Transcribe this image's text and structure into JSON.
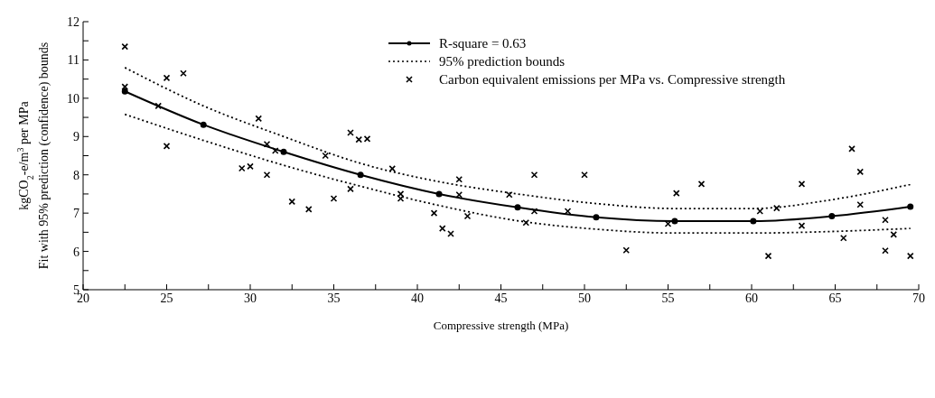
{
  "chart_data": {
    "type": "line",
    "xlabel": "Compressive strength (MPa)",
    "ylabel": "kgCO$_{2}$-e/m$^{3}$ per MPa\nFit with 95% prediction (confidence) bounds",
    "xlim": [
      20,
      70
    ],
    "ylim": [
      5,
      12
    ],
    "xticks": [
      20,
      {
        "value": 22.5,
        "label": null
      },
      25,
      {
        "value": 27.5,
        "label": null
      },
      30,
      {
        "value": 32.5,
        "label": null
      },
      35,
      {
        "value": 37.5,
        "label": null
      },
      40,
      {
        "value": 42.5,
        "label": null
      },
      45,
      {
        "value": 47.5,
        "label": null
      },
      50,
      {
        "value": 52.5,
        "label": null
      },
      55,
      {
        "value": 57.5,
        "label": null
      },
      60,
      {
        "value": 62.5,
        "label": null
      },
      65,
      {
        "value": 67.5,
        "label": null
      },
      70
    ],
    "yticks": [
      5,
      {
        "value": 5.5,
        "label": null
      },
      6,
      {
        "value": 6.5,
        "label": null
      },
      7,
      {
        "value": 7.5,
        "label": null
      },
      8,
      {
        "value": 8.5,
        "label": null
      },
      9,
      {
        "value": 9.5,
        "label": null
      },
      10,
      {
        "value": 10.5,
        "label": null
      },
      11,
      {
        "value": 11.5,
        "label": null
      },
      12
    ],
    "grid": false,
    "legend": "top",
    "line_style": "solid",
    "series": [
      {
        "name": "R-square = 0.63",
        "color": "#000000",
        "marker": "circle",
        "x": [
          22.5,
          27.2,
          32,
          36.6,
          41.3,
          46,
          50.7,
          55.4,
          60.1,
          64.8,
          69.5
        ],
        "values": [
          10.18,
          9.31,
          8.6,
          8.0,
          7.5,
          7.15,
          6.89,
          6.79,
          6.79,
          6.92,
          7.17
        ]
      },
      {
        "name": "95% prediction bounds",
        "color": "#000000",
        "marker": "none",
        "line_style": "dotted",
        "x": [
          22.5,
          27.2,
          32,
          36.6,
          41.3,
          46,
          50.7,
          55.4,
          60.1,
          64.8,
          69.5
        ],
        "values": [
          10.8,
          9.8,
          9.0,
          8.3,
          7.82,
          7.5,
          7.25,
          7.12,
          7.12,
          7.35,
          7.75
        ]
      },
      {
        "color": "#000000",
        "marker": "none",
        "line_style": "dotted",
        "x": [
          22.5,
          27.2,
          32,
          36.6,
          41.3,
          46,
          50.7,
          55.4,
          60.1,
          64.8,
          69.5
        ],
        "values": [
          9.58,
          8.9,
          8.25,
          7.7,
          7.2,
          6.8,
          6.58,
          6.48,
          6.48,
          6.52,
          6.6
        ]
      },
      {
        "name": "Carbon equivalent emissions per MPa vs. Compressive strength",
        "type": "scatter",
        "color": "#000000",
        "marker": "cross",
        "x": [
          22.5,
          22.5,
          24.5,
          25,
          25,
          26,
          29.5,
          30,
          30.5,
          31,
          31,
          31.5,
          32.5,
          33.5,
          34.5,
          35,
          36,
          36,
          36.5,
          37,
          38.5,
          39,
          39,
          41,
          41.5,
          42,
          42.5,
          42.5,
          43,
          45.5,
          46.5,
          47,
          47,
          49,
          50,
          52.5,
          55,
          55.5,
          57,
          60.5,
          61,
          61.5,
          63,
          63,
          65.5,
          66,
          66.5,
          66.5,
          68,
          68,
          68.5,
          69.5
        ],
        "values": [
          11.35,
          10.3,
          9.8,
          10.53,
          8.75,
          10.65,
          8.17,
          8.22,
          9.47,
          8.8,
          8.0,
          8.63,
          7.3,
          7.1,
          8.5,
          7.38,
          9.1,
          7.63,
          8.92,
          8.94,
          8.16,
          7.5,
          7.38,
          7.0,
          6.6,
          6.46,
          7.88,
          7.48,
          6.92,
          7.48,
          6.75,
          8.0,
          7.05,
          7.05,
          8.0,
          6.03,
          6.72,
          7.52,
          7.76,
          7.05,
          5.88,
          7.13,
          7.76,
          6.67,
          6.35,
          8.68,
          8.08,
          7.22,
          6.82,
          6.02,
          6.44,
          5.88
        ]
      }
    ]
  }
}
